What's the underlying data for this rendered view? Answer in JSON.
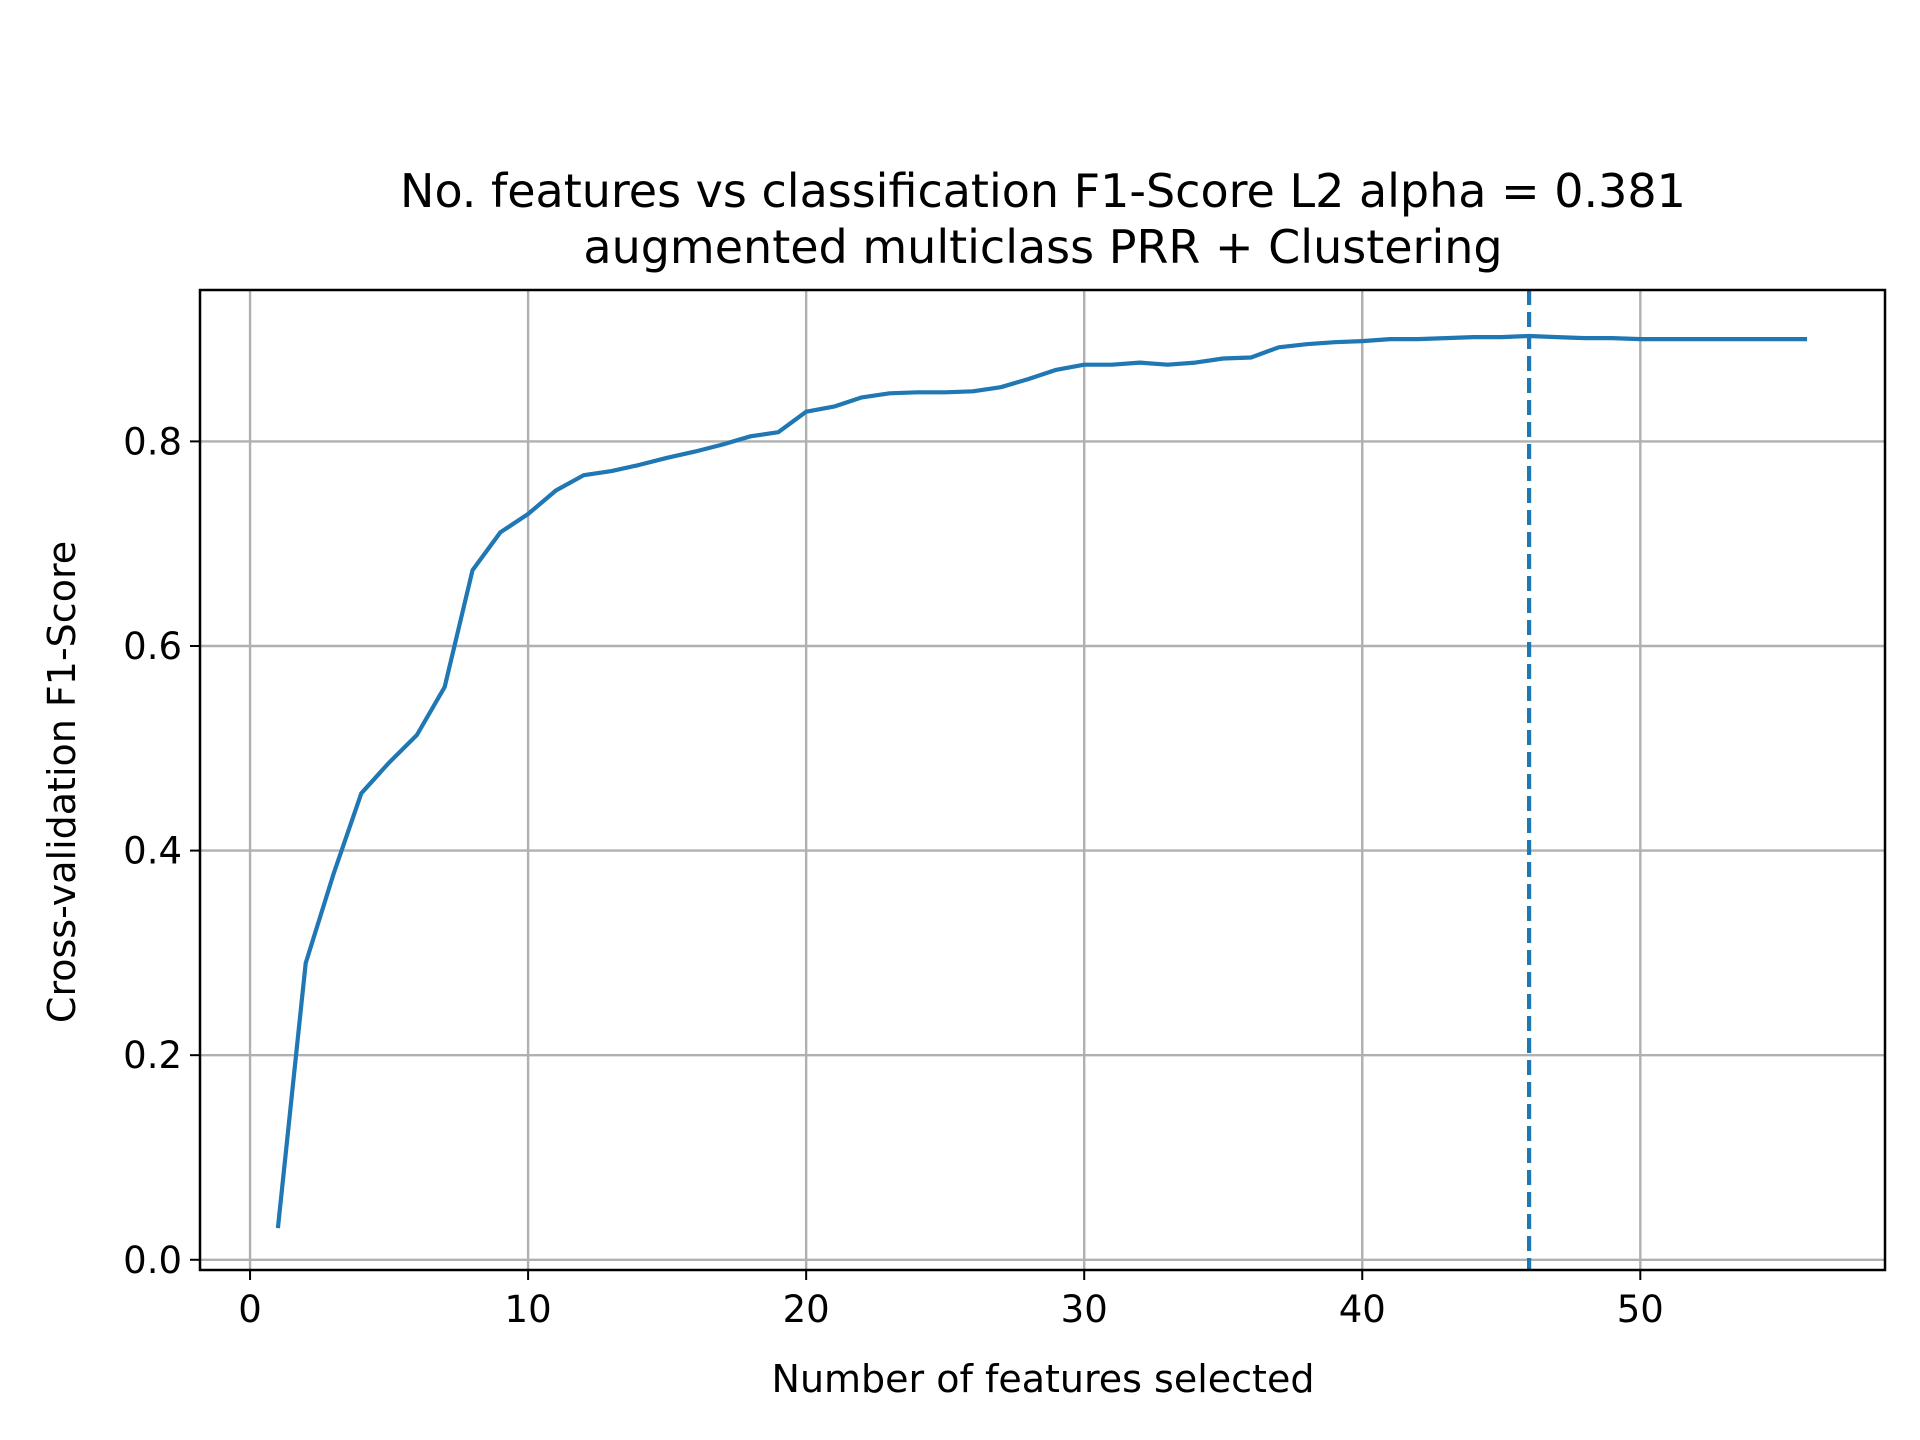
{
  "chart_data": {
    "type": "line",
    "title": "No. features vs classification F1-Score L2 alpha = 0.381",
    "subtitle": "augmented multiclass PRR + Clustering",
    "xlabel": "Number of features selected",
    "ylabel": "Cross-validation F1-Score",
    "xlim": [
      -1.8,
      58.8
    ],
    "ylim": [
      -0.01,
      0.948
    ],
    "xticks": [
      0,
      10,
      20,
      30,
      40,
      50
    ],
    "xtick_labels": [
      "0",
      "10",
      "20",
      "30",
      "40",
      "50"
    ],
    "yticks": [
      0.0,
      0.2,
      0.4,
      0.6,
      0.8
    ],
    "ytick_labels": [
      "0.0",
      "0.2",
      "0.4",
      "0.6",
      "0.8"
    ],
    "grid": true,
    "line_color": "#1f77b4",
    "series": [
      {
        "x": [
          1,
          2,
          3,
          4,
          5,
          6,
          7,
          8,
          9,
          10,
          11,
          12,
          13,
          14,
          15,
          16,
          17,
          18,
          19,
          20,
          21,
          22,
          23,
          24,
          25,
          26,
          27,
          28,
          29,
          30,
          31,
          32,
          33,
          34,
          35,
          36,
          37,
          38,
          39,
          40,
          41,
          42,
          43,
          44,
          45,
          46,
          47,
          48,
          49,
          50,
          51,
          52,
          53,
          54,
          55,
          56
        ],
        "values": [
          0.031,
          0.29,
          0.377,
          0.456,
          0.486,
          0.513,
          0.56,
          0.674,
          0.711,
          0.729,
          0.752,
          0.767,
          0.771,
          0.777,
          0.784,
          0.79,
          0.797,
          0.805,
          0.809,
          0.829,
          0.834,
          0.843,
          0.847,
          0.848,
          0.848,
          0.849,
          0.853,
          0.861,
          0.87,
          0.875,
          0.875,
          0.877,
          0.875,
          0.877,
          0.881,
          0.882,
          0.892,
          0.895,
          0.897,
          0.898,
          0.9,
          0.9,
          0.901,
          0.902,
          0.902,
          0.903,
          0.902,
          0.901,
          0.901,
          0.9,
          0.9,
          0.9,
          0.9,
          0.9,
          0.9,
          0.9
        ]
      }
    ],
    "vline": {
      "x": 46,
      "style": "dashed"
    }
  }
}
